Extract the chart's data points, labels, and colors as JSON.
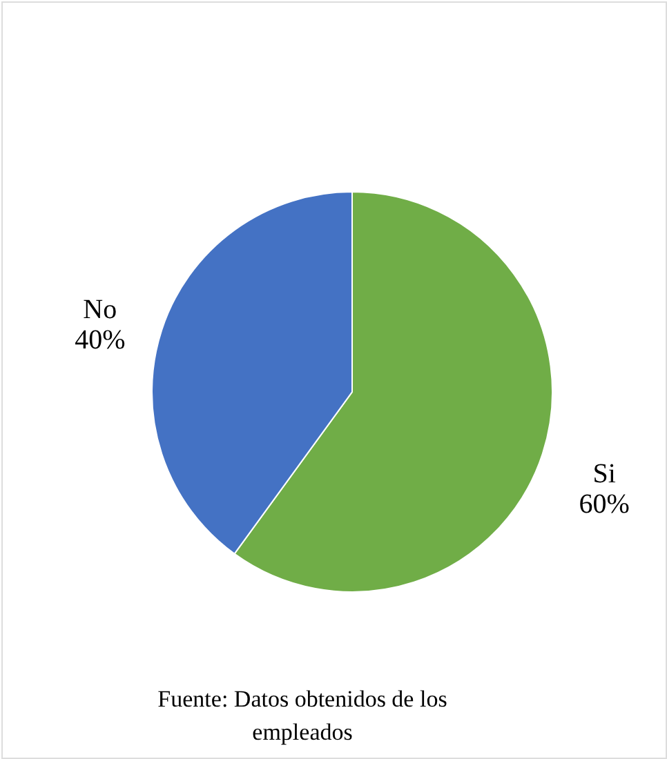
{
  "chart_data": {
    "type": "pie",
    "categories": [
      "Si",
      "No"
    ],
    "values": [
      60,
      40
    ],
    "colors": [
      "#70ad47",
      "#4472c4"
    ],
    "value_labels": [
      "60%",
      "40%"
    ],
    "annotations": [
      "Fuente: Datos obtenidos de los\nempleados"
    ]
  }
}
